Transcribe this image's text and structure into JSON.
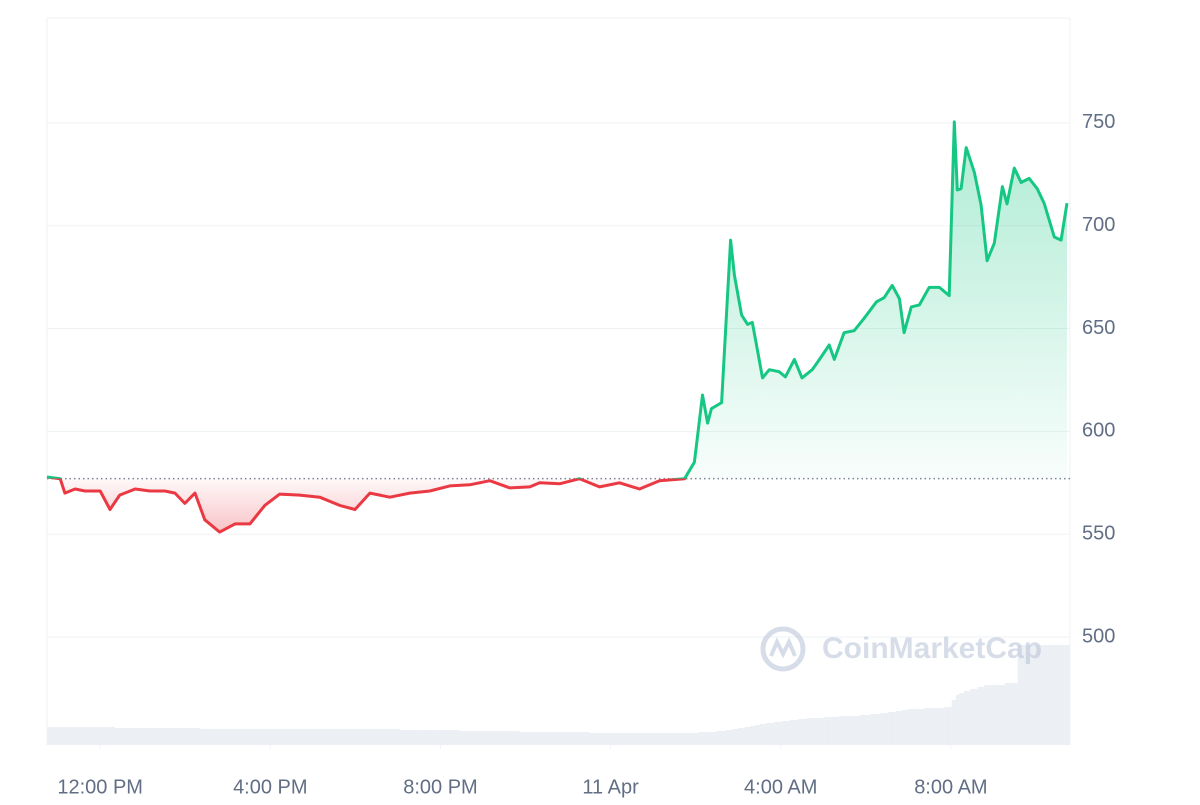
{
  "chart_data": {
    "type": "line",
    "x": [
      10.75,
      11.06,
      11.17,
      11.41,
      11.64,
      12.0,
      12.23,
      12.46,
      12.82,
      13.17,
      13.52,
      13.76,
      13.99,
      14.23,
      14.46,
      14.81,
      15.17,
      15.52,
      15.87,
      16.22,
      16.69,
      17.16,
      17.63,
      17.99,
      18.34,
      18.81,
      19.28,
      19.75,
      20.22,
      20.69,
      21.16,
      21.63,
      22.1,
      22.33,
      22.8,
      23.27,
      23.74,
      24.21,
      24.68,
      25.15,
      25.74,
      25.97,
      26.16,
      26.28,
      26.37,
      26.61,
      26.82,
      26.91,
      27.08,
      27.22,
      27.33,
      27.45,
      27.57,
      27.73,
      27.96,
      28.11,
      28.32,
      28.5,
      28.74,
      28.91,
      29.14,
      29.26,
      29.49,
      29.73,
      29.96,
      30.25,
      30.43,
      30.62,
      30.79,
      30.9,
      31.07,
      31.26,
      31.49,
      31.73,
      31.96,
      32.08,
      32.15,
      32.24,
      32.36,
      32.55,
      32.71,
      32.85,
      33.02,
      33.21,
      33.32,
      33.49,
      33.65,
      33.84,
      34.03,
      34.19,
      34.43,
      34.59,
      34.73
    ],
    "values": [
      577.8,
      577,
      570,
      572,
      571,
      571,
      562,
      569,
      572,
      571,
      571,
      570,
      565,
      570,
      557,
      551,
      555,
      555,
      564,
      569.5,
      569,
      568,
      564,
      562,
      570,
      568,
      570,
      571,
      573.5,
      574,
      576,
      572.5,
      573,
      575,
      574.5,
      577,
      573,
      575,
      572,
      576,
      577,
      585,
      617.7,
      604,
      611,
      614,
      693,
      676,
      656.6,
      652,
      653,
      639.6,
      626,
      630,
      629,
      626.5,
      635,
      626,
      630,
      635,
      642,
      635,
      648,
      649,
      655,
      663,
      665,
      671,
      664.5,
      648,
      660.5,
      661.5,
      670,
      670,
      666,
      750.5,
      717.4,
      718,
      738,
      726,
      710,
      683,
      691.5,
      719,
      710.6,
      728,
      721,
      723,
      718,
      711,
      694.5,
      693,
      711
    ],
    "volume": [
      18,
      18,
      18,
      18,
      18,
      18,
      18,
      17,
      17,
      17,
      17,
      17,
      17,
      17,
      16,
      16,
      16,
      16,
      16,
      16,
      16,
      16,
      16,
      16,
      16,
      16,
      15,
      15,
      15,
      14,
      14,
      14,
      13,
      13,
      13,
      13,
      12,
      12,
      12,
      12,
      12,
      12,
      13,
      13,
      13,
      14,
      15,
      16,
      17,
      18,
      19,
      20,
      21,
      22,
      23,
      24,
      25,
      26,
      27,
      27,
      28,
      28,
      29,
      29,
      30,
      31,
      32,
      33,
      34,
      35,
      36,
      36,
      37,
      37,
      38,
      45,
      50,
      52,
      54,
      56,
      58,
      60,
      60,
      60,
      62,
      62,
      100,
      100,
      100,
      100,
      100,
      100,
      100
    ],
    "reference_line": 577,
    "up_color": "#16c784",
    "down_color": "#ea3943",
    "xlim": [
      10.75,
      34.8
    ],
    "ylim": [
      447.5,
      801
    ],
    "xticks": [
      {
        "value": 12,
        "label": "12:00 PM"
      },
      {
        "value": 16,
        "label": "4:00 PM"
      },
      {
        "value": 20,
        "label": "8:00 PM"
      },
      {
        "value": 24,
        "label": "11 Apr"
      },
      {
        "value": 28,
        "label": "4:00 AM"
      },
      {
        "value": 32,
        "label": "8:00 AM"
      }
    ],
    "yticks": [
      500,
      550,
      600,
      650,
      700,
      750
    ],
    "grid": true,
    "watermark": "CoinMarketCap"
  }
}
